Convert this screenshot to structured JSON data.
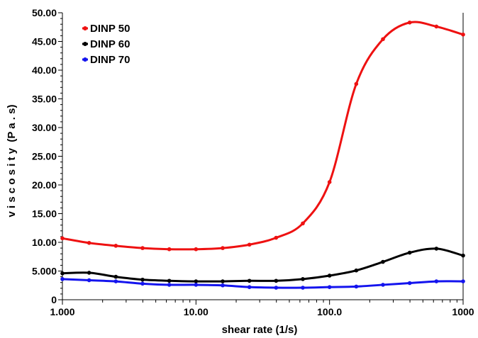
{
  "chart_data": {
    "type": "line",
    "xlabel": "shear rate (1/s)",
    "ylabel": "v i s c o s i t y  (P a . s)",
    "xscale": "log",
    "xlim": [
      1,
      1000
    ],
    "ylim": [
      0,
      50
    ],
    "xticks": [
      {
        "value": 1,
        "label": "1.000"
      },
      {
        "value": 10,
        "label": "10.00"
      },
      {
        "value": 100,
        "label": "100.0"
      },
      {
        "value": 1000,
        "label": "1000"
      }
    ],
    "yticks": [
      {
        "value": 0,
        "label": "0"
      },
      {
        "value": 5,
        "label": "5.000"
      },
      {
        "value": 10,
        "label": "10.00"
      },
      {
        "value": 15,
        "label": "15.00"
      },
      {
        "value": 20,
        "label": "20.00"
      },
      {
        "value": 25,
        "label": "25.00"
      },
      {
        "value": 30,
        "label": "30.00"
      },
      {
        "value": 35,
        "label": "35.00"
      },
      {
        "value": 40,
        "label": "40.00"
      },
      {
        "value": 45,
        "label": "45.00"
      },
      {
        "value": 50,
        "label": "50.00"
      }
    ],
    "grid": false,
    "legend_position": "top-left",
    "x": [
      1.0,
      1.585,
      2.512,
      3.981,
      6.31,
      10.0,
      15.85,
      25.12,
      39.81,
      63.1,
      100.0,
      158.5,
      251.2,
      398.1,
      631.0,
      1000.0
    ],
    "series": [
      {
        "name": "DINP 50",
        "color": "#ee1111",
        "values": [
          10.7,
          9.9,
          9.4,
          9.0,
          8.8,
          8.8,
          9.0,
          9.6,
          10.8,
          13.3,
          20.5,
          37.6,
          45.4,
          48.3,
          47.6,
          46.2
        ]
      },
      {
        "name": "DINP 60",
        "color": "#000000",
        "values": [
          4.6,
          4.7,
          4.0,
          3.5,
          3.3,
          3.2,
          3.2,
          3.3,
          3.3,
          3.6,
          4.2,
          5.1,
          6.6,
          8.2,
          8.9,
          7.7
        ]
      },
      {
        "name": "DINP 70",
        "color": "#1414ee",
        "values": [
          3.6,
          3.4,
          3.2,
          2.8,
          2.6,
          2.6,
          2.5,
          2.2,
          2.1,
          2.1,
          2.2,
          2.3,
          2.6,
          2.9,
          3.2,
          3.2
        ]
      }
    ]
  }
}
